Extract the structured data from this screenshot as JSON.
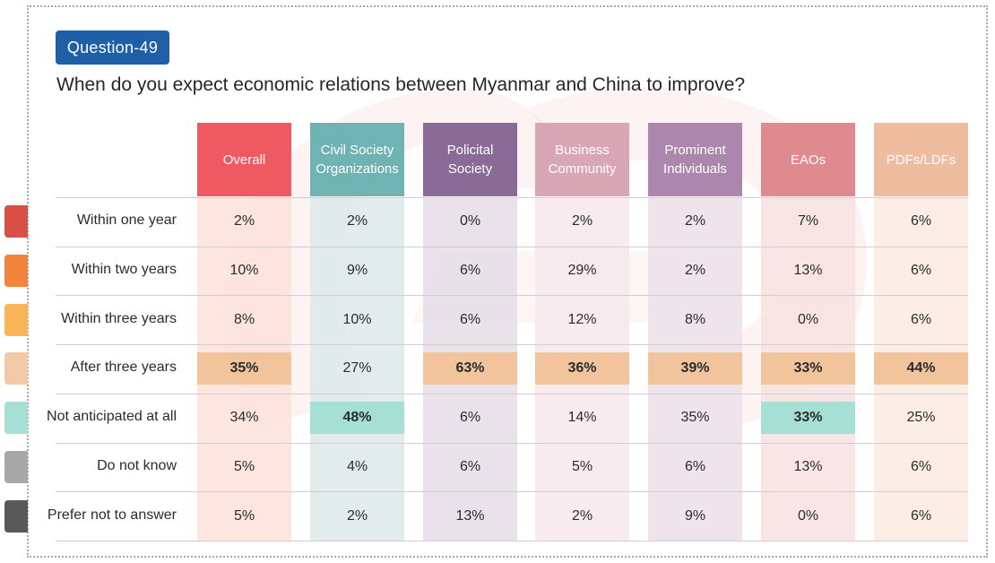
{
  "question_badge": "Question-49",
  "question_text": "When do you expect economic relations between Myanmar and China to improve?",
  "colors": {
    "badge": "#1f5fa8",
    "highlight_orange": "#f2c49c",
    "highlight_teal": "#a6dfd3"
  },
  "chart_data": {
    "type": "table",
    "columns": [
      {
        "label": "Overall",
        "header_color": "#ef5a62",
        "body_color": "#fde0da"
      },
      {
        "label": "Civil Society Organizations",
        "header_color": "#6fb3b3",
        "body_color": "#dde9ea"
      },
      {
        "label": "Policital Society",
        "header_color": "#8a6b97",
        "body_color": "#e5dde7"
      },
      {
        "label": "Business Community",
        "header_color": "#d9a6b6",
        "body_color": "#f6e8ec"
      },
      {
        "label": "Prominent Individuals",
        "header_color": "#ad86ad",
        "body_color": "#eddfe9"
      },
      {
        "label": "EAOs",
        "header_color": "#df8a8e",
        "body_color": "#f8e0e0"
      },
      {
        "label": "PDFs/LDFs",
        "header_color": "#eebc9f",
        "body_color": "#fbebe2"
      }
    ],
    "rows": [
      {
        "label": "Within one year",
        "legend_color": "#d94f45",
        "values": [
          "2%",
          "2%",
          "0%",
          "2%",
          "2%",
          "7%",
          "6%"
        ],
        "highlight": [
          "",
          "",
          "",
          "",
          "",
          "",
          ""
        ]
      },
      {
        "label": "Within two years",
        "legend_color": "#f2843d",
        "values": [
          "10%",
          "9%",
          "6%",
          "29%",
          "2%",
          "13%",
          "6%"
        ],
        "highlight": [
          "",
          "",
          "",
          "",
          "",
          "",
          ""
        ]
      },
      {
        "label": "Within three years",
        "legend_color": "#fbb35a",
        "values": [
          "8%",
          "10%",
          "6%",
          "12%",
          "8%",
          "0%",
          "6%"
        ],
        "highlight": [
          "",
          "",
          "",
          "",
          "",
          "",
          ""
        ]
      },
      {
        "label": "After three years",
        "legend_color": "#f4c9a7",
        "values": [
          "35%",
          "27%",
          "63%",
          "36%",
          "39%",
          "33%",
          "44%"
        ],
        "highlight": [
          "orange",
          "",
          "orange",
          "orange",
          "orange",
          "orange",
          "orange"
        ]
      },
      {
        "label": "Not anticipated at all",
        "legend_color": "#a6dfd3",
        "values": [
          "34%",
          "48%",
          "6%",
          "14%",
          "35%",
          "33%",
          "25%"
        ],
        "highlight": [
          "",
          "teal",
          "",
          "",
          "",
          "teal",
          ""
        ]
      },
      {
        "label": "Do not know",
        "legend_color": "#a8a8a8",
        "values": [
          "5%",
          "4%",
          "6%",
          "5%",
          "6%",
          "13%",
          "6%"
        ],
        "highlight": [
          "",
          "",
          "",
          "",
          "",
          "",
          ""
        ]
      },
      {
        "label": "Prefer not to answer",
        "legend_color": "#58595b",
        "values": [
          "5%",
          "2%",
          "13%",
          "2%",
          "9%",
          "0%",
          "6%"
        ],
        "highlight": [
          "",
          "",
          "",
          "",
          "",
          "",
          ""
        ]
      }
    ]
  }
}
